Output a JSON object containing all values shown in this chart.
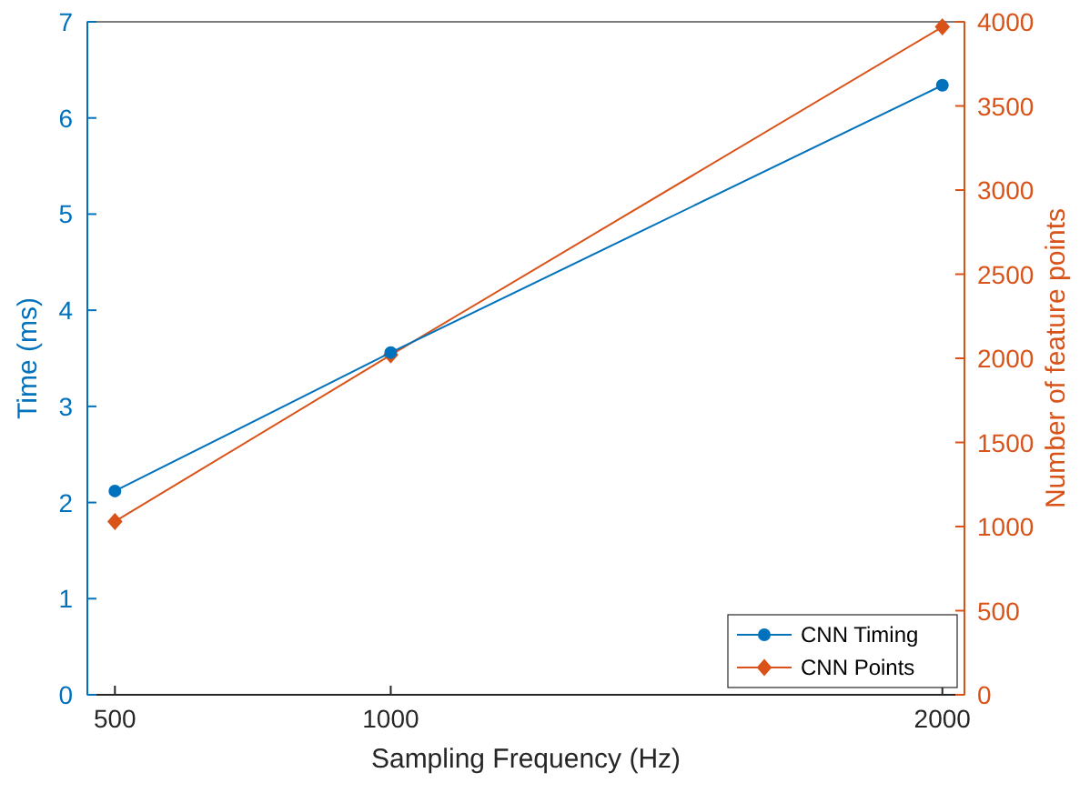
{
  "chart_data": {
    "type": "line",
    "xlabel": "Sampling Frequency (Hz)",
    "ylabel": "Time (ms)",
    "y2label": "Number of feature points",
    "x": [
      500,
      1000,
      2000
    ],
    "xlim": [
      450,
      2040
    ],
    "xticks": [
      500,
      1000,
      2000
    ],
    "ylim": [
      0,
      7
    ],
    "yticks": [
      0,
      1,
      2,
      3,
      4,
      5,
      6,
      7
    ],
    "y2lim": [
      0,
      4000
    ],
    "y2ticks": [
      0,
      500,
      1000,
      1500,
      2000,
      2500,
      3000,
      3500,
      4000
    ],
    "series": [
      {
        "name": "CNN Timing",
        "color": "#0072bd",
        "values": [
          2.12,
          3.56,
          6.34
        ],
        "marker": "circle"
      },
      {
        "name": "CNN Points",
        "color": "#d95319",
        "values": [
          1030,
          2020,
          3970
        ],
        "axis": "y2",
        "marker": "diamond"
      }
    ],
    "legend": "bottom right",
    "grid": false,
    "line_style": "solid"
  }
}
